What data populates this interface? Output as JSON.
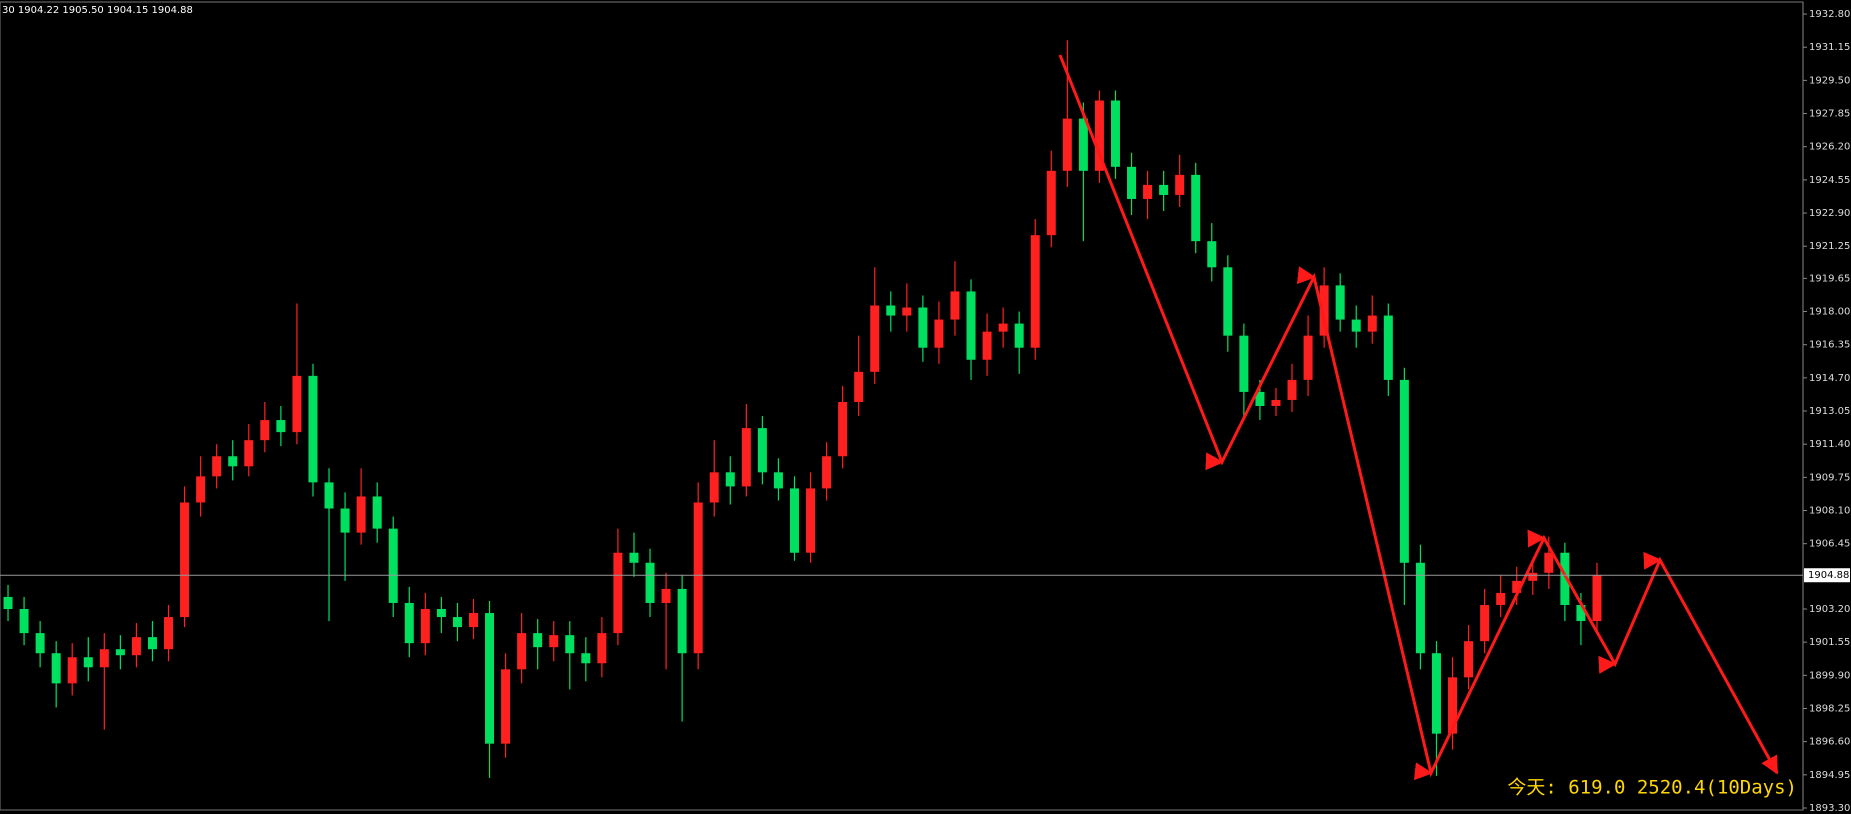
{
  "chart_data": {
    "type": "candlestick",
    "title": "30  1904.22 1905.50 1904.15 1904.88",
    "annotation": "今天:  619.0   2520.4(10Days)",
    "up_color": "#ff2020",
    "down_color": "#00e060",
    "current_price": 1904.88,
    "ylim": [
      1893.2,
      1933.4
    ],
    "yticks": [
      {
        "value": 1932.8,
        "label": "1932.80"
      },
      1931.15,
      {
        "value": 1929.5,
        "label": "1929.50"
      },
      1927.85,
      {
        "value": 1926.2,
        "label": "1926.20"
      },
      1924.55,
      {
        "value": 1922.9,
        "label": "1922.90"
      },
      1921.25,
      1919.65,
      {
        "value": 1918.0,
        "label": "1918.00"
      },
      1916.35,
      {
        "value": 1914.7,
        "label": "1914.70"
      },
      1913.05,
      {
        "value": 1911.4,
        "label": "1911.40"
      },
      1909.75,
      {
        "value": 1908.1,
        "label": "1908.10"
      },
      1906.45,
      {
        "value": 1903.2,
        "label": "1903.20"
      },
      1901.55,
      {
        "value": 1899.9,
        "label": "1899.90"
      },
      1898.25,
      {
        "value": 1896.6,
        "label": "1896.60"
      },
      1894.95,
      {
        "value": 1893.3,
        "label": "1893.30"
      }
    ],
    "open": [
      1903.8,
      1903.2,
      1902.0,
      1901.0,
      1899.5,
      1900.8,
      1900.3,
      1901.2,
      1900.9,
      1901.8,
      1901.2,
      1902.8,
      1908.5,
      1909.8,
      1910.8,
      1910.3,
      1911.6,
      1912.6,
      1912.0,
      1914.8,
      1909.5,
      1908.2,
      1907.0,
      1908.8,
      1907.2,
      1903.5,
      1901.5,
      1903.2,
      1902.8,
      1902.3,
      1903.0,
      1896.5,
      1900.2,
      1902.0,
      1901.3,
      1901.9,
      1901.0,
      1900.5,
      1902.0,
      1906.0,
      1905.5,
      1903.5,
      1904.2,
      1901.0,
      1908.5,
      1910.0,
      1909.3,
      1912.2,
      1910.0,
      1909.2,
      1906.0,
      1909.2,
      1910.8,
      1913.5,
      1915.0,
      1918.3,
      1917.8,
      1918.2,
      1916.2,
      1917.6,
      1919.0,
      1915.6,
      1917.0,
      1917.4,
      1916.2,
      1921.8,
      1925.0,
      1927.6,
      1925.0,
      1928.5,
      1925.2,
      1923.6,
      1924.3,
      1923.8,
      1924.8,
      1921.5,
      1920.2,
      1916.8,
      1914.0,
      1913.3,
      1913.6,
      1914.6,
      1916.8,
      1919.3,
      1917.6,
      1917.0,
      1917.8,
      1914.6,
      1905.5,
      1901.0,
      1897.0,
      1899.8,
      1901.6,
      1903.4,
      1904.0,
      1904.6,
      1905.0,
      1906.0,
      1903.4,
      1902.6
    ],
    "high": [
      1904.4,
      1903.8,
      1902.6,
      1901.6,
      1901.5,
      1901.8,
      1902.0,
      1901.9,
      1902.5,
      1902.6,
      1903.4,
      1909.3,
      1910.8,
      1911.4,
      1911.6,
      1912.4,
      1913.5,
      1913.3,
      1918.4,
      1915.4,
      1910.2,
      1909.0,
      1910.2,
      1909.5,
      1907.8,
      1904.3,
      1904.0,
      1903.8,
      1903.5,
      1903.7,
      1903.6,
      1901.0,
      1903.0,
      1902.7,
      1902.6,
      1902.6,
      1901.8,
      1902.8,
      1907.2,
      1907.0,
      1906.2,
      1905.0,
      1904.9,
      1909.5,
      1911.6,
      1910.8,
      1913.4,
      1912.8,
      1910.7,
      1909.8,
      1910.0,
      1911.5,
      1914.3,
      1916.8,
      1920.2,
      1919.0,
      1919.4,
      1918.8,
      1918.5,
      1920.5,
      1919.6,
      1917.9,
      1918.2,
      1918.0,
      1922.6,
      1926.0,
      1931.5,
      1928.4,
      1929.0,
      1929.0,
      1925.9,
      1925.0,
      1925.0,
      1925.8,
      1925.4,
      1922.4,
      1920.8,
      1917.4,
      1914.6,
      1914.2,
      1915.4,
      1917.8,
      1920.2,
      1919.9,
      1918.3,
      1918.8,
      1918.4,
      1915.2,
      1906.4,
      1901.6,
      1900.8,
      1902.4,
      1904.2,
      1904.9,
      1905.3,
      1905.6,
      1906.8,
      1906.5,
      1904.0,
      1905.5
    ],
    "low": [
      1902.6,
      1901.4,
      1900.3,
      1898.3,
      1898.9,
      1899.6,
      1897.2,
      1900.2,
      1900.3,
      1900.6,
      1900.6,
      1902.3,
      1907.8,
      1909.2,
      1909.6,
      1909.8,
      1911.0,
      1911.3,
      1911.4,
      1908.8,
      1902.6,
      1904.6,
      1906.4,
      1906.5,
      1902.8,
      1900.8,
      1900.9,
      1902.0,
      1901.6,
      1901.7,
      1894.8,
      1895.8,
      1899.5,
      1900.2,
      1900.6,
      1899.2,
      1899.6,
      1899.8,
      1901.4,
      1904.8,
      1902.8,
      1900.2,
      1897.6,
      1900.2,
      1907.8,
      1908.4,
      1908.8,
      1909.4,
      1908.6,
      1905.6,
      1905.5,
      1908.6,
      1910.2,
      1912.8,
      1914.4,
      1917.0,
      1917.0,
      1915.5,
      1915.4,
      1916.8,
      1914.6,
      1914.8,
      1916.2,
      1914.9,
      1915.6,
      1921.2,
      1924.2,
      1921.5,
      1924.4,
      1924.6,
      1922.8,
      1922.6,
      1923.0,
      1923.2,
      1920.9,
      1919.5,
      1916.0,
      1912.6,
      1912.6,
      1912.8,
      1913.0,
      1913.8,
      1916.2,
      1917.0,
      1916.2,
      1916.4,
      1913.8,
      1903.4,
      1900.2,
      1894.9,
      1896.2,
      1899.2,
      1901.0,
      1902.8,
      1903.4,
      1903.9,
      1904.2,
      1902.6,
      1901.4,
      1902.0
    ],
    "close": [
      1903.2,
      1902.0,
      1901.0,
      1899.5,
      1900.8,
      1900.3,
      1901.2,
      1900.9,
      1901.8,
      1901.2,
      1902.8,
      1908.5,
      1909.8,
      1910.8,
      1910.3,
      1911.6,
      1912.6,
      1912.0,
      1914.8,
      1909.5,
      1908.2,
      1907.0,
      1908.8,
      1907.2,
      1903.5,
      1901.5,
      1903.2,
      1902.8,
      1902.3,
      1903.0,
      1896.5,
      1900.2,
      1902.0,
      1901.3,
      1901.9,
      1901.0,
      1900.5,
      1902.0,
      1906.0,
      1905.5,
      1903.5,
      1904.2,
      1901.0,
      1908.5,
      1910.0,
      1909.3,
      1912.2,
      1910.0,
      1909.2,
      1906.0,
      1909.2,
      1910.8,
      1913.5,
      1915.0,
      1918.3,
      1917.8,
      1918.2,
      1916.2,
      1917.6,
      1919.0,
      1915.6,
      1917.0,
      1917.4,
      1916.2,
      1921.8,
      1925.0,
      1927.6,
      1925.0,
      1928.5,
      1925.2,
      1923.6,
      1924.3,
      1923.8,
      1924.8,
      1921.5,
      1920.2,
      1916.8,
      1914.0,
      1913.3,
      1913.6,
      1914.6,
      1916.8,
      1919.3,
      1917.6,
      1917.0,
      1917.8,
      1914.6,
      1905.5,
      1901.0,
      1897.0,
      1899.8,
      1901.6,
      1903.4,
      1904.0,
      1904.6,
      1905.0,
      1906.0,
      1903.4,
      1902.6,
      1904.88
    ]
  }
}
